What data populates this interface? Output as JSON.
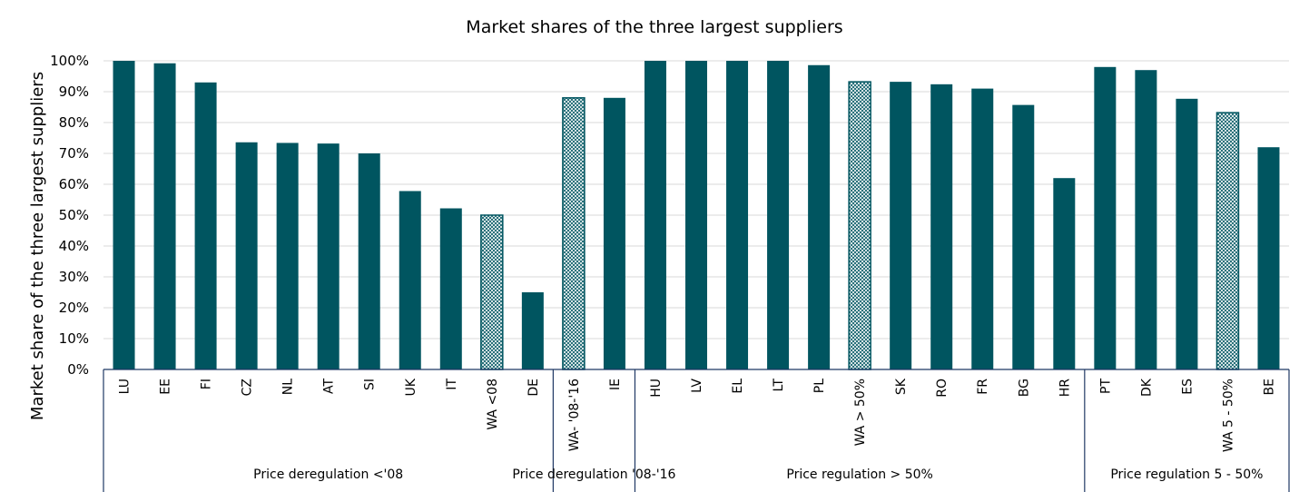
{
  "chart_data": {
    "type": "bar",
    "title": "Market shares of the three largest suppliers",
    "xlabel": "",
    "ylabel": "Market share of the three largest suppliers",
    "ylim": [
      0,
      100
    ],
    "yticks": [
      "0%",
      "10%",
      "20%",
      "30%",
      "40%",
      "50%",
      "60%",
      "70%",
      "80%",
      "90%",
      "100%"
    ],
    "grid": true,
    "colors": {
      "bar": "#005560",
      "hatch_stroke": "#005560",
      "grid": "#d9d9d9",
      "axis": "#1f3864"
    },
    "categories": [
      "LU",
      "EE",
      "FI",
      "CZ",
      "NL",
      "AT",
      "SI",
      "UK",
      "IT",
      "WA <08",
      "DE",
      "WA- '08-'16",
      "IE",
      "HU",
      "LV",
      "EL",
      "LT",
      "PL",
      "WA > 50%",
      "SK",
      "RO",
      "FR",
      "BG",
      "HR",
      "PT",
      "DK",
      "ES",
      "WA 5 - 50%",
      "BE"
    ],
    "values": [
      100,
      99.2,
      93,
      73.6,
      73.4,
      73.2,
      70,
      57.8,
      52.2,
      50,
      25,
      88,
      88,
      100,
      100,
      100,
      100,
      98.6,
      93.2,
      93.2,
      92.4,
      91,
      85.7,
      62,
      98,
      97,
      87.7,
      83.2,
      72
    ],
    "weighted_average_markers": [
      "WA <08",
      "WA- '08-'16",
      "WA > 50%",
      "WA 5 - 50%"
    ],
    "groups": [
      {
        "label": "Price deregulation <'08",
        "start": 0,
        "end": 10
      },
      {
        "label": "Price deregulation '08-'16",
        "start": 11,
        "end": 12
      },
      {
        "label": "Price regulation > 50%",
        "start": 13,
        "end": 23
      },
      {
        "label": "Price regulation 5 - 50%",
        "start": 24,
        "end": 28
      }
    ]
  }
}
